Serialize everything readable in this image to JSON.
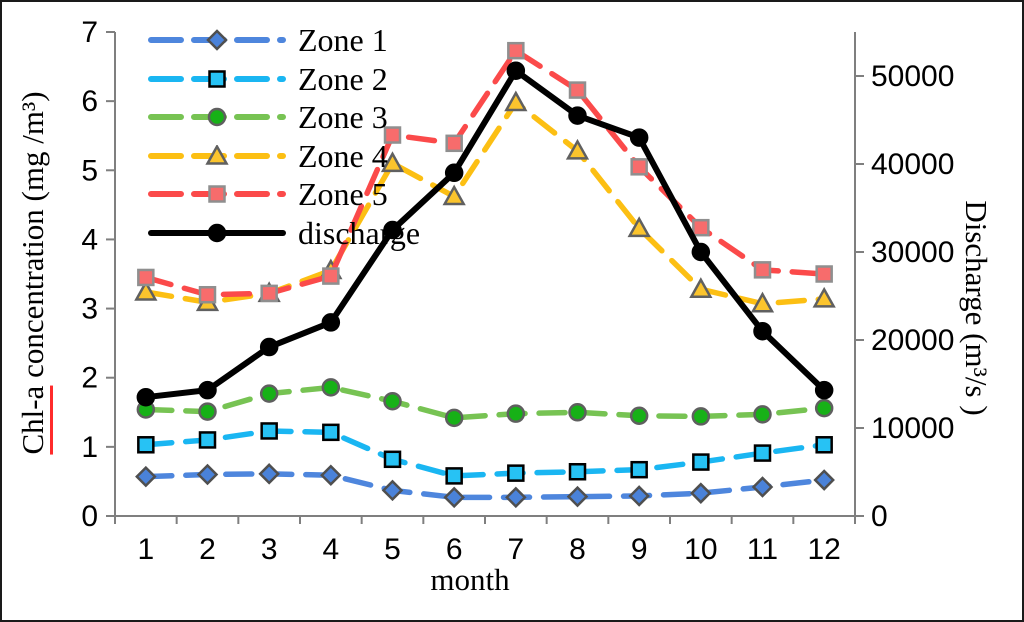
{
  "chart_data": {
    "type": "line",
    "x": [
      1,
      2,
      3,
      4,
      5,
      6,
      7,
      8,
      9,
      10,
      11,
      12
    ],
    "xlabel": "month",
    "left_axis": {
      "label": "Chl-a concentration (mg /m³)",
      "underlined_prefix": "Chl-a",
      "ticks": [
        0,
        1,
        2,
        3,
        4,
        5,
        6,
        7
      ],
      "range": [
        0,
        7
      ]
    },
    "right_axis": {
      "label": "Discharge (m³/s )",
      "ticks": [
        0,
        10000,
        20000,
        30000,
        40000,
        50000
      ],
      "range": [
        0,
        55000
      ]
    },
    "grid": false,
    "legend_position": "top-left",
    "axis_color": "#7f7f7f",
    "text_color": "#000000",
    "misspell_underline_color": "#ff2b2b",
    "series": [
      {
        "name": "Zone 1",
        "axis": "left",
        "marker": "diamond",
        "dashed": true,
        "line_color": "#4e86dd",
        "marker_color": "#4a82d9",
        "marker_edge": "#4f4f4f",
        "values": [
          0.57,
          0.6,
          0.61,
          0.59,
          0.37,
          0.27,
          0.27,
          0.28,
          0.29,
          0.33,
          0.42,
          0.52
        ]
      },
      {
        "name": "Zone 2",
        "axis": "left",
        "marker": "square",
        "dashed": true,
        "line_color": "#1ab6f2",
        "marker_color": "#27c2f4",
        "marker_edge": "#000000",
        "values": [
          1.03,
          1.1,
          1.23,
          1.21,
          0.82,
          0.58,
          0.62,
          0.64,
          0.67,
          0.78,
          0.91,
          1.03
        ]
      },
      {
        "name": "Zone 3",
        "axis": "left",
        "marker": "circle",
        "dashed": true,
        "line_color": "#77c353",
        "marker_color": "#17b117",
        "marker_edge": "#5f5f5f",
        "values": [
          1.54,
          1.51,
          1.77,
          1.86,
          1.66,
          1.42,
          1.48,
          1.5,
          1.45,
          1.44,
          1.47,
          1.56
        ]
      },
      {
        "name": "Zone 4",
        "axis": "left",
        "marker": "triangle",
        "dashed": true,
        "line_color": "#fcbf13",
        "marker_color": "#fbc42d",
        "marker_edge": "#606060",
        "values": [
          3.24,
          3.09,
          3.22,
          3.55,
          5.1,
          4.62,
          5.98,
          5.28,
          4.16,
          3.28,
          3.07,
          3.14
        ]
      },
      {
        "name": "Zone 5",
        "axis": "left",
        "marker": "square",
        "dashed": true,
        "line_color": "#fb4a4a",
        "marker_color": "#f76c6c",
        "marker_edge": "#8f8f8f",
        "values": [
          3.45,
          3.2,
          3.22,
          3.47,
          5.51,
          5.39,
          6.73,
          6.16,
          5.05,
          4.17,
          3.56,
          3.5
        ]
      },
      {
        "name": "discharge",
        "axis": "right",
        "marker": "circle",
        "dashed": false,
        "line_color": "#000000",
        "marker_color": "#000000",
        "marker_edge": "#000000",
        "values": [
          13500,
          14300,
          19200,
          22000,
          32500,
          39000,
          50600,
          45500,
          43000,
          30000,
          21000,
          14300
        ]
      }
    ]
  }
}
